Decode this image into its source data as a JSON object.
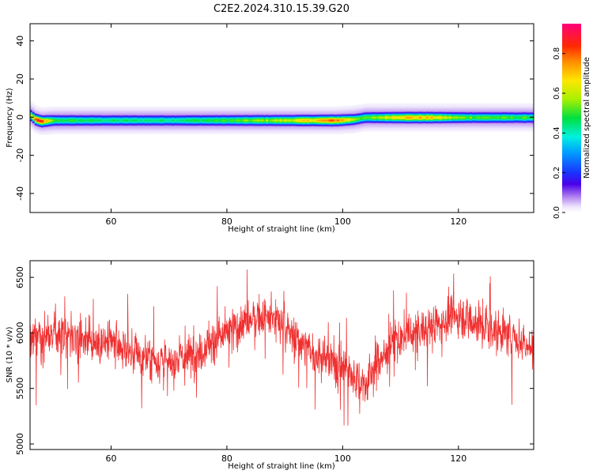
{
  "title": "C2E2.2024.310.15.39.G20",
  "chart_data": [
    {
      "type": "heatmap",
      "xlabel": "Height of straight line (km)",
      "ylabel": "Frequency (Hz)",
      "xlim": [
        46,
        133
      ],
      "ylim": [
        -50,
        49
      ],
      "xticks": [
        60,
        80,
        100,
        120
      ],
      "yticks": [
        -40,
        -20,
        0,
        20,
        40
      ],
      "colorbar": {
        "label": "Normalized spectral amplitude",
        "range": [
          0,
          0.95
        ],
        "ticks": [
          0.0,
          0.2,
          0.4,
          0.6,
          0.8
        ]
      },
      "ridge": [
        {
          "x": 46.0,
          "y": 1.5,
          "amp": 0.55
        },
        {
          "x": 47.0,
          "y": -1.0,
          "amp": 0.8
        },
        {
          "x": 48.0,
          "y": -2.0,
          "amp": 0.85
        },
        {
          "x": 50.0,
          "y": -1.5,
          "amp": 0.5
        },
        {
          "x": 60.0,
          "y": -1.5,
          "amp": 0.45
        },
        {
          "x": 70.0,
          "y": -1.5,
          "amp": 0.45
        },
        {
          "x": 80.0,
          "y": -1.5,
          "amp": 0.5
        },
        {
          "x": 90.0,
          "y": -1.5,
          "amp": 0.6
        },
        {
          "x": 95.0,
          "y": -1.5,
          "amp": 0.7
        },
        {
          "x": 99.0,
          "y": -1.5,
          "amp": 0.8
        },
        {
          "x": 102.0,
          "y": -1.0,
          "amp": 0.6
        },
        {
          "x": 104.0,
          "y": 0.0,
          "amp": 0.5
        },
        {
          "x": 110.0,
          "y": 0.0,
          "amp": 0.72
        },
        {
          "x": 115.0,
          "y": 0.0,
          "amp": 0.7
        },
        {
          "x": 120.0,
          "y": 0.0,
          "amp": 0.55
        },
        {
          "x": 130.0,
          "y": 0.0,
          "amp": 0.5
        },
        {
          "x": 133.0,
          "y": 0.0,
          "amp": 0.5
        }
      ]
    },
    {
      "type": "line",
      "xlabel": "Height of straight line (km)",
      "ylabel": "SNR (10 * v/v)",
      "xlim": [
        46,
        133
      ],
      "ylim": [
        4950,
        6650
      ],
      "xticks": [
        60,
        80,
        100,
        120
      ],
      "yticks": [
        5000,
        5500,
        6000,
        6500
      ],
      "series": [
        {
          "color": "#f03030",
          "x": [
            46,
            50,
            55,
            60,
            65,
            70,
            75,
            80,
            85,
            88,
            92,
            96,
            100,
            104,
            106,
            110,
            115,
            120,
            125,
            130,
            133
          ],
          "y": [
            5950,
            6000,
            5970,
            5900,
            5800,
            5720,
            5830,
            6000,
            6150,
            6130,
            5950,
            5780,
            5700,
            5520,
            5750,
            5950,
            6050,
            6170,
            6050,
            5950,
            5850
          ],
          "noise_std": 140
        }
      ]
    }
  ]
}
